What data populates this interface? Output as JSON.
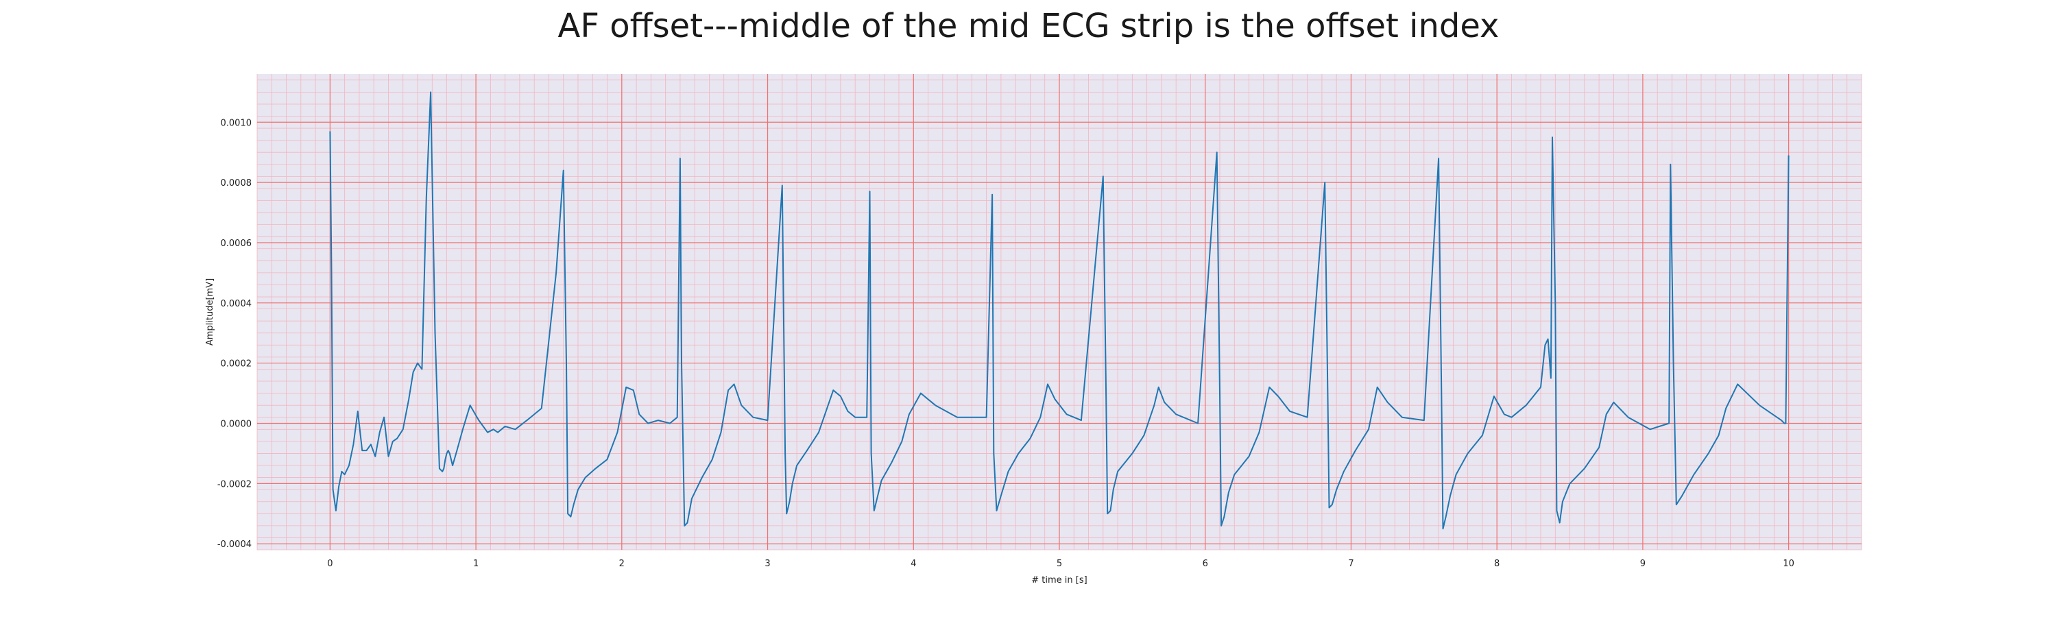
{
  "chart_data": {
    "type": "line",
    "title": "AF offset---middle of the mid ECG strip is the offset index",
    "xlabel": "# time in [s]",
    "ylabel": "Amplitude[mV]",
    "xlim": [
      -0.5,
      10.5
    ],
    "ylim": [
      -0.00042,
      0.00116
    ],
    "x_ticks": [
      0,
      1,
      2,
      3,
      4,
      5,
      6,
      7,
      8,
      9,
      10
    ],
    "x_tick_labels": [
      "0",
      "1",
      "2",
      "3",
      "4",
      "5",
      "6",
      "7",
      "8",
      "9",
      "10"
    ],
    "y_ticks": [
      -0.0004,
      -0.0002,
      0.0,
      0.0002,
      0.0004,
      0.0006,
      0.0008,
      0.001
    ],
    "y_tick_labels": [
      "-0.0004",
      "-0.0002",
      "0.0000",
      "0.0002",
      "0.0004",
      "0.0006",
      "0.0008",
      "0.0010"
    ],
    "grid": true,
    "grid_minor": true,
    "colors": {
      "line": "#1f77b4",
      "background": "#e8e6f0",
      "major_grid": "#f07070",
      "minor_grid": "#f2b5c0"
    },
    "series": [
      {
        "x": [
          0.0,
          0.01,
          0.02,
          0.04,
          0.06,
          0.08,
          0.1,
          0.13,
          0.16,
          0.19,
          0.22,
          0.25,
          0.28,
          0.31,
          0.34,
          0.37,
          0.4,
          0.43,
          0.46,
          0.5,
          0.54,
          0.57,
          0.6,
          0.63,
          0.66,
          0.69,
          0.72,
          0.75,
          0.77,
          0.78,
          0.79,
          0.8,
          0.81,
          0.82,
          0.84,
          0.87,
          0.91,
          0.96,
          1.02,
          1.08,
          1.12,
          1.15,
          1.2,
          1.27,
          1.35,
          1.45,
          1.55,
          1.6,
          1.62,
          1.63,
          1.65,
          1.67,
          1.7,
          1.75,
          1.82,
          1.9,
          1.97,
          2.03,
          2.08,
          2.12,
          2.18,
          2.25,
          2.33,
          2.38,
          2.4,
          2.41,
          2.43,
          2.45,
          2.48,
          2.55,
          2.62,
          2.68,
          2.73,
          2.77,
          2.82,
          2.9,
          3.0,
          3.1,
          3.12,
          3.13,
          3.15,
          3.17,
          3.2,
          3.27,
          3.35,
          3.45,
          3.5,
          3.55,
          3.6,
          3.68,
          3.7,
          3.71,
          3.73,
          3.75,
          3.78,
          3.85,
          3.92,
          3.97,
          4.05,
          4.15,
          4.3,
          4.5,
          4.54,
          4.55,
          4.57,
          4.6,
          4.65,
          4.72,
          4.8,
          4.87,
          4.92,
          4.97,
          5.05,
          5.15,
          5.3,
          5.32,
          5.33,
          5.35,
          5.37,
          5.4,
          5.5,
          5.58,
          5.65,
          5.68,
          5.72,
          5.8,
          5.95,
          6.08,
          6.1,
          6.11,
          6.13,
          6.16,
          6.2,
          6.3,
          6.37,
          6.44,
          6.5,
          6.58,
          6.7,
          6.82,
          6.84,
          6.85,
          6.87,
          6.9,
          6.95,
          7.03,
          7.12,
          7.18,
          7.25,
          7.35,
          7.5,
          7.6,
          7.62,
          7.63,
          7.65,
          7.68,
          7.72,
          7.8,
          7.9,
          7.98,
          8.05,
          8.1,
          8.2,
          8.3,
          8.33,
          8.35,
          8.37,
          8.38,
          8.4,
          8.41,
          8.43,
          8.45,
          8.5,
          8.6,
          8.7,
          8.75,
          8.8,
          8.9,
          9.05,
          9.18,
          9.19,
          9.21,
          9.23,
          9.27,
          9.35,
          9.45,
          9.52,
          9.57,
          9.65,
          9.8,
          9.95,
          9.97,
          9.98,
          10.0
        ],
        "y": [
          0.00097,
          0.0005,
          -0.00022,
          -0.00029,
          -0.00021,
          -0.00016,
          -0.00017,
          -0.00014,
          -7e-05,
          4e-05,
          -9e-05,
          -9e-05,
          -7e-05,
          -0.00011,
          -3e-05,
          2e-05,
          -0.00011,
          -6e-05,
          -5e-05,
          -2e-05,
          8e-05,
          0.00017,
          0.0002,
          0.00018,
          0.00075,
          0.0011,
          0.0003,
          -0.00015,
          -0.00016,
          -0.00015,
          -0.00012,
          -0.0001,
          -9e-05,
          -0.0001,
          -0.00014,
          -9e-05,
          -2e-05,
          6e-05,
          1e-05,
          -3e-05,
          -2e-05,
          -3e-05,
          -1e-05,
          -2e-05,
          1e-05,
          5e-05,
          0.0005,
          0.00084,
          0.0002,
          -0.0003,
          -0.00031,
          -0.00027,
          -0.00022,
          -0.00018,
          -0.00015,
          -0.00012,
          -3e-05,
          0.00012,
          0.00011,
          3e-05,
          0.0,
          1e-05,
          0.0,
          2e-05,
          0.00088,
          0.0002,
          -0.00034,
          -0.00033,
          -0.00025,
          -0.00018,
          -0.00012,
          -3e-05,
          0.00011,
          0.00013,
          6e-05,
          2e-05,
          1e-05,
          0.00079,
          -0.0001,
          -0.0003,
          -0.00026,
          -0.0002,
          -0.00014,
          -9e-05,
          -3e-05,
          0.00011,
          9e-05,
          4e-05,
          2e-05,
          2e-05,
          0.00077,
          -0.0001,
          -0.00029,
          -0.00025,
          -0.00019,
          -0.00013,
          -6e-05,
          3e-05,
          0.0001,
          6e-05,
          2e-05,
          2e-05,
          0.00076,
          -0.0001,
          -0.00029,
          -0.00024,
          -0.00016,
          -0.0001,
          -5e-05,
          2e-05,
          0.00013,
          8e-05,
          3e-05,
          1e-05,
          0.00082,
          0.0001,
          -0.0003,
          -0.00029,
          -0.00022,
          -0.00016,
          -0.0001,
          -4e-05,
          6e-05,
          0.00012,
          7e-05,
          3e-05,
          0.0,
          0.0009,
          0.0001,
          -0.00034,
          -0.00031,
          -0.00023,
          -0.00017,
          -0.00011,
          -3e-05,
          0.00012,
          9e-05,
          4e-05,
          2e-05,
          0.0008,
          0.0001,
          -0.00028,
          -0.00027,
          -0.00022,
          -0.00016,
          -9e-05,
          -2e-05,
          0.00012,
          7e-05,
          2e-05,
          1e-05,
          0.00088,
          0.0001,
          -0.00035,
          -0.00031,
          -0.00024,
          -0.00017,
          -0.0001,
          -4e-05,
          9e-05,
          3e-05,
          2e-05,
          6e-05,
          0.00012,
          0.00026,
          0.00028,
          0.00015,
          0.00095,
          0.0004,
          -0.00029,
          -0.00033,
          -0.00026,
          -0.0002,
          -0.00015,
          -8e-05,
          3e-05,
          7e-05,
          2e-05,
          -2e-05,
          0.0,
          0.00086,
          0.0002,
          -0.00027,
          -0.00024,
          -0.00017,
          -0.0001,
          -4e-05,
          5e-05,
          0.00013,
          6e-05,
          1e-05,
          0.0,
          0.0,
          0.00089
        ]
      }
    ]
  }
}
